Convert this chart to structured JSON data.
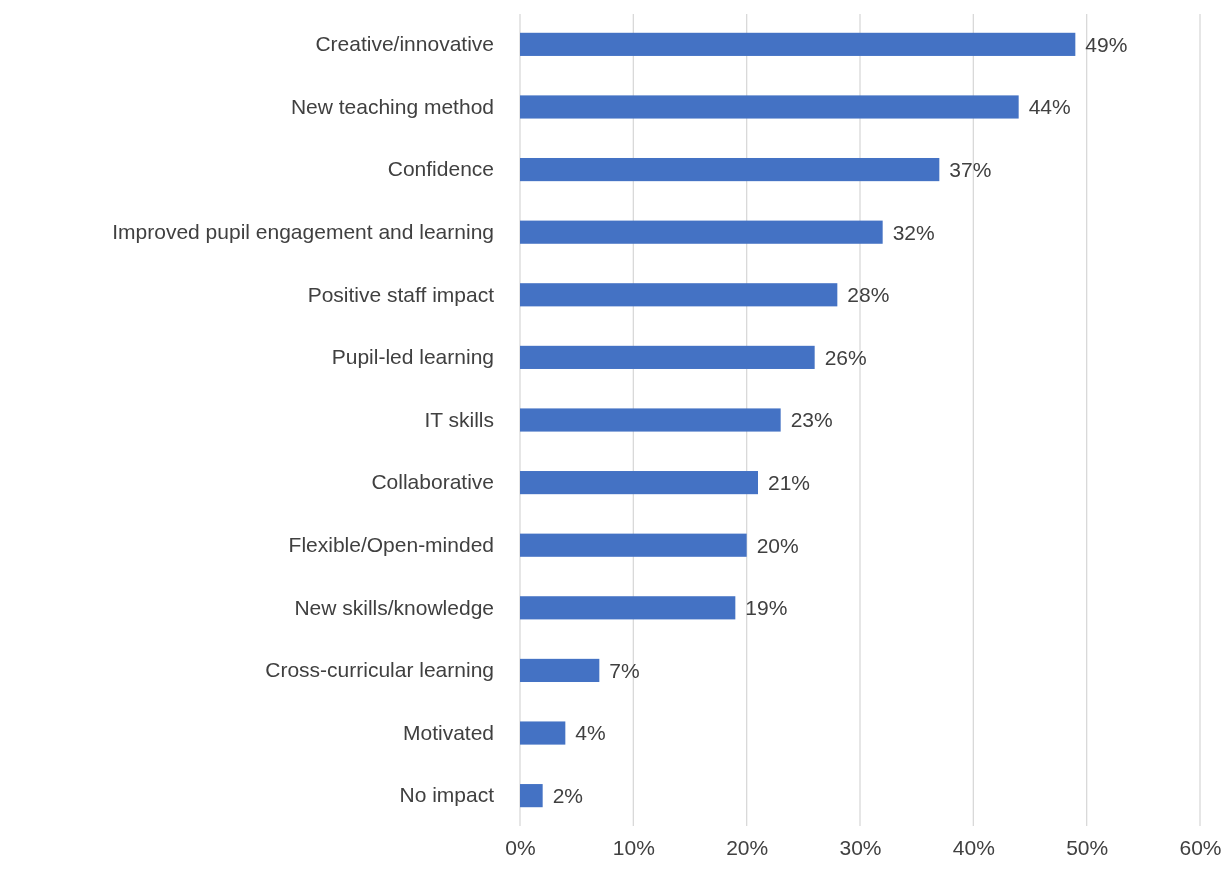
{
  "chart_data": {
    "type": "bar",
    "orientation": "horizontal",
    "categories": [
      "Creative/innovative",
      "New teaching method",
      "Confidence",
      "Improved pupil engagement and learning",
      "Positive staff impact",
      "Pupil-led learning",
      "IT skills",
      "Collaborative",
      "Flexible/Open-minded",
      "New skills/knowledge",
      "Cross-curricular learning",
      "Motivated",
      "No impact"
    ],
    "values": [
      49,
      44,
      37,
      32,
      28,
      26,
      23,
      21,
      20,
      19,
      7,
      4,
      2
    ],
    "value_labels": [
      "49%",
      "44%",
      "37%",
      "32%",
      "28%",
      "26%",
      "23%",
      "21%",
      "20%",
      "19%",
      "7%",
      "4%",
      "2%"
    ],
    "color": "#4472c4",
    "xlim": [
      0,
      60
    ],
    "xticks": [
      {
        "value": 0,
        "label": "0%"
      },
      {
        "value": 10,
        "label": "10%"
      },
      {
        "value": 20,
        "label": "20%"
      },
      {
        "value": 30,
        "label": "30%"
      },
      {
        "value": 40,
        "label": "40%"
      },
      {
        "value": 50,
        "label": "50%"
      },
      {
        "value": 60,
        "label": "60%"
      }
    ],
    "grid": "x"
  }
}
